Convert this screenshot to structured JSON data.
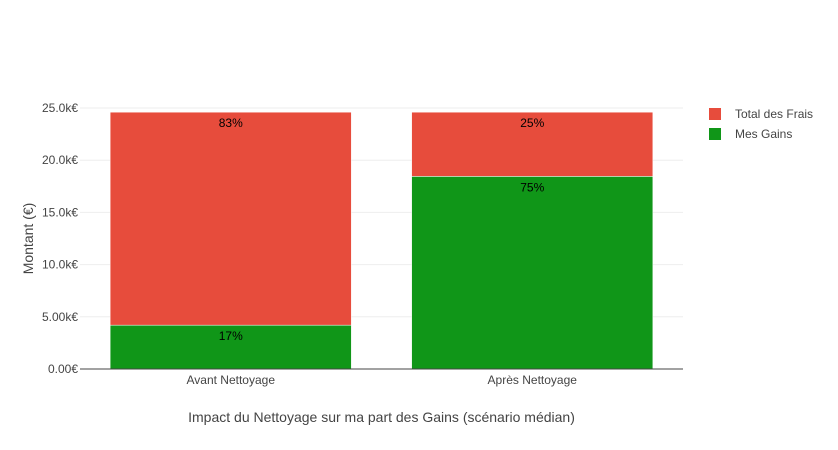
{
  "chart_data": {
    "type": "bar",
    "stacked": true,
    "categories": [
      "Avant Nettoyage",
      "Après Nettoyage"
    ],
    "series": [
      {
        "name": "Mes Gains",
        "color": "#109618",
        "values": [
          4200,
          18450
        ],
        "labels": [
          "17%",
          "75%"
        ]
      },
      {
        "name": "Total des Frais",
        "color": "#e74c3c",
        "values": [
          20400,
          6150
        ],
        "labels": [
          "83%",
          "25%"
        ]
      }
    ],
    "xlabel": "Impact du Nettoyage sur ma part des Gains (scénario médian)",
    "ylabel": "Montant (€)",
    "ylim": [
      0,
      25000
    ],
    "yticks": [
      0,
      5000,
      10000,
      15000,
      20000,
      25000
    ],
    "ytick_labels": [
      "0.00€",
      "5.00k€",
      "10.0k€",
      "15.0k€",
      "20.0k€",
      "25.0k€"
    ],
    "grid": true,
    "legend": "top-right",
    "legend_order": [
      "Total des Frais",
      "Mes Gains"
    ]
  }
}
